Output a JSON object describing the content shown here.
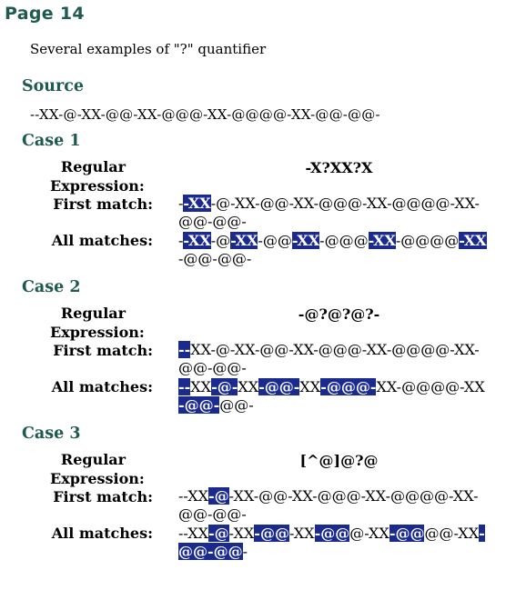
{
  "page": {
    "title": "Page 14",
    "intro": "Several examples of \"?\" quantifier"
  },
  "source": {
    "heading": "Source",
    "text": "--XX-@-XX-@@-XX-@@@-XX-@@@@-XX-@@-@@-"
  },
  "labels": {
    "regex": "Regular Expression:",
    "first": "First match:",
    "all": "All matches:"
  },
  "cases": [
    {
      "heading": "Case 1",
      "regex": "-X?XX?X",
      "first_match": [
        {
          "t": "-",
          "h": false
        },
        {
          "t": "-XX",
          "h": true
        },
        {
          "t": "-@-XX-@@-XX-@@@-XX-@@@@-XX-@@-@@-",
          "h": false
        }
      ],
      "all_matches": [
        {
          "t": "-",
          "h": false
        },
        {
          "t": "-XX",
          "h": true
        },
        {
          "t": "-@",
          "h": false
        },
        {
          "t": "-XX",
          "h": true
        },
        {
          "t": "-@@",
          "h": false
        },
        {
          "t": "-XX",
          "h": true
        },
        {
          "t": "-@@@",
          "h": false
        },
        {
          "t": "-XX",
          "h": true
        },
        {
          "t": "-@@@@",
          "h": false
        },
        {
          "t": "-XX",
          "h": true
        },
        {
          "t": "-@@-@@-",
          "h": false
        }
      ]
    },
    {
      "heading": "Case 2",
      "regex": "-@?@?@?-",
      "first_match": [
        {
          "t": "--",
          "h": true
        },
        {
          "t": "XX-@-XX-@@-XX-@@@-XX-@@@@-XX-@@-@@-",
          "h": false
        }
      ],
      "all_matches": [
        {
          "t": "--",
          "h": true
        },
        {
          "t": "XX",
          "h": false
        },
        {
          "t": "-@-",
          "h": true
        },
        {
          "t": "XX",
          "h": false
        },
        {
          "t": "-@@-",
          "h": true
        },
        {
          "t": "XX",
          "h": false
        },
        {
          "t": "-@@@-",
          "h": true
        },
        {
          "t": "XX-@@@@-XX",
          "h": false
        },
        {
          "t": "-@@-",
          "h": true
        },
        {
          "t": "@@-",
          "h": false
        }
      ]
    },
    {
      "heading": "Case 3",
      "regex": "[^@]@?@",
      "first_match": [
        {
          "t": "--XX",
          "h": false
        },
        {
          "t": "-@",
          "h": true
        },
        {
          "t": "-XX-@@-XX-@@@-XX-@@@@-XX-@@-@@-",
          "h": false
        }
      ],
      "all_matches": [
        {
          "t": "--XX",
          "h": false
        },
        {
          "t": "-@",
          "h": true
        },
        {
          "t": "-XX",
          "h": false
        },
        {
          "t": "-@@",
          "h": true
        },
        {
          "t": "-XX",
          "h": false
        },
        {
          "t": "-@@",
          "h": true
        },
        {
          "t": "@-XX",
          "h": false
        },
        {
          "t": "-@@",
          "h": true
        },
        {
          "t": "@@-XX",
          "h": false
        },
        {
          "t": "-@@-@@",
          "h": true
        },
        {
          "t": "-",
          "h": false
        }
      ]
    }
  ]
}
